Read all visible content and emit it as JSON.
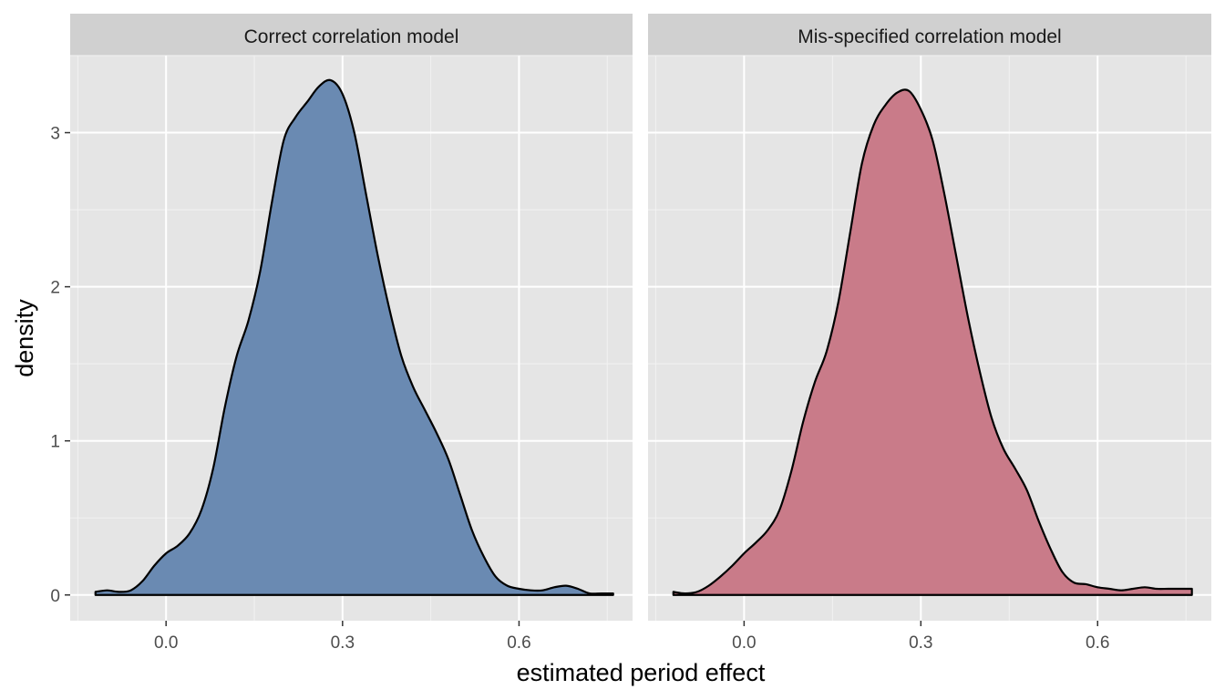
{
  "chart_data": {
    "type": "area",
    "subtype": "density",
    "xlabel": "estimated period effect",
    "ylabel": "density",
    "xlim": [
      -0.163,
      0.793
    ],
    "ylim": [
      -0.167,
      3.5
    ],
    "xticks": [
      0.0,
      0.3,
      0.6
    ],
    "xtick_labels": [
      "0.0",
      "0.3",
      "0.6"
    ],
    "yticks": [
      0,
      1,
      2,
      3
    ],
    "ytick_labels": [
      "0",
      "1",
      "2",
      "3"
    ],
    "grid": true,
    "panel_background": "#e5e5e5",
    "strip_background": "#d0d0d0",
    "outline_color": "#000000",
    "facets": [
      {
        "strip": "Correct correlation model",
        "fill": "#6a8ab2",
        "x": [
          -0.12,
          -0.1,
          -0.08,
          -0.06,
          -0.04,
          -0.02,
          0.0,
          0.02,
          0.04,
          0.06,
          0.08,
          0.1,
          0.12,
          0.14,
          0.16,
          0.18,
          0.2,
          0.22,
          0.24,
          0.26,
          0.28,
          0.3,
          0.32,
          0.34,
          0.36,
          0.38,
          0.4,
          0.42,
          0.44,
          0.46,
          0.48,
          0.5,
          0.52,
          0.54,
          0.56,
          0.58,
          0.6,
          0.62,
          0.64,
          0.66,
          0.68,
          0.7,
          0.72,
          0.74,
          0.76
        ],
        "y": [
          0.02,
          0.03,
          0.02,
          0.03,
          0.09,
          0.19,
          0.27,
          0.32,
          0.4,
          0.55,
          0.82,
          1.22,
          1.55,
          1.78,
          2.1,
          2.55,
          2.95,
          3.1,
          3.2,
          3.3,
          3.34,
          3.25,
          3.0,
          2.6,
          2.2,
          1.85,
          1.55,
          1.35,
          1.2,
          1.05,
          0.88,
          0.65,
          0.42,
          0.25,
          0.12,
          0.06,
          0.04,
          0.03,
          0.03,
          0.05,
          0.06,
          0.04,
          0.01,
          0.01,
          0.01
        ]
      },
      {
        "strip": "Mis-specified correlation model",
        "fill": "#c97b89",
        "x": [
          -0.12,
          -0.1,
          -0.08,
          -0.06,
          -0.04,
          -0.02,
          0.0,
          0.02,
          0.04,
          0.06,
          0.08,
          0.1,
          0.12,
          0.14,
          0.16,
          0.18,
          0.2,
          0.22,
          0.24,
          0.26,
          0.28,
          0.3,
          0.32,
          0.34,
          0.36,
          0.38,
          0.4,
          0.42,
          0.44,
          0.46,
          0.48,
          0.5,
          0.52,
          0.54,
          0.56,
          0.58,
          0.6,
          0.62,
          0.64,
          0.66,
          0.68,
          0.7,
          0.72,
          0.74,
          0.76
        ],
        "y": [
          0.02,
          0.01,
          0.02,
          0.06,
          0.12,
          0.19,
          0.27,
          0.34,
          0.42,
          0.55,
          0.8,
          1.12,
          1.38,
          1.58,
          1.9,
          2.35,
          2.8,
          3.05,
          3.18,
          3.26,
          3.27,
          3.15,
          2.95,
          2.6,
          2.2,
          1.8,
          1.45,
          1.15,
          0.95,
          0.82,
          0.68,
          0.48,
          0.3,
          0.15,
          0.08,
          0.07,
          0.05,
          0.04,
          0.03,
          0.04,
          0.05,
          0.04,
          0.04,
          0.04,
          0.04
        ]
      }
    ]
  }
}
